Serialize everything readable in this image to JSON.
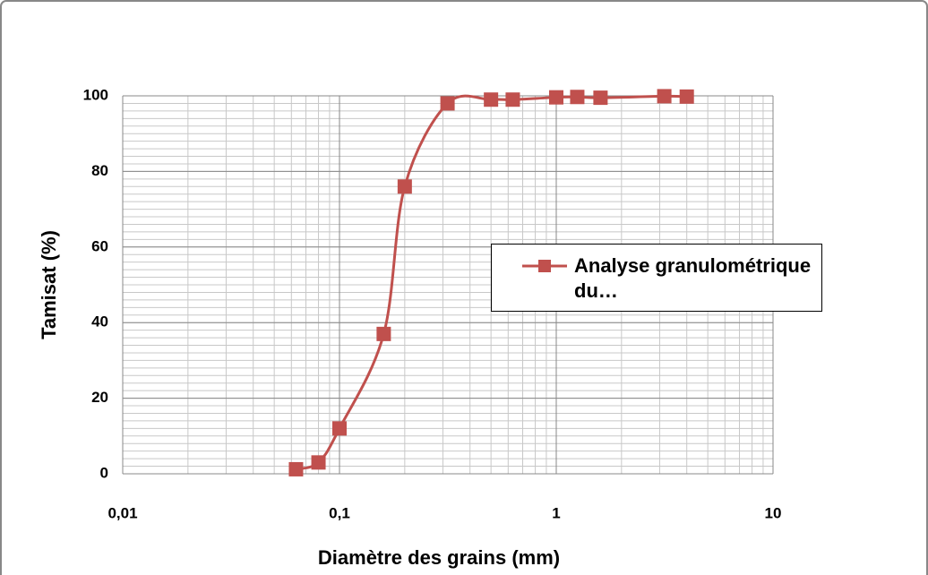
{
  "chart_data": {
    "type": "line",
    "x_label": "Diamètre des grains (mm)",
    "y_label": "Tamisat (%)",
    "x": [
      0.063,
      0.08,
      0.1,
      0.16,
      0.2,
      0.315,
      0.5,
      0.63,
      1,
      1.25,
      1.6,
      3.15,
      4
    ],
    "series": [
      {
        "name": "Analyse granulométrique du…",
        "color": "#c0504d",
        "values": [
          1.2,
          3,
          12,
          37,
          76,
          98,
          99,
          99,
          99.6,
          99.7,
          99.5,
          99.9,
          99.8
        ]
      }
    ],
    "xscale": "log",
    "xlim": [
      0.01,
      10
    ],
    "xticks": [
      {
        "value": 0.01,
        "label": "0,01"
      },
      {
        "value": 0.1,
        "label": "0,1"
      },
      1,
      10
    ],
    "ylim": [
      0,
      100
    ],
    "yticks": [
      0,
      20,
      40,
      60,
      80,
      100
    ],
    "grid": true,
    "minor_grid": true,
    "legend": "right"
  }
}
